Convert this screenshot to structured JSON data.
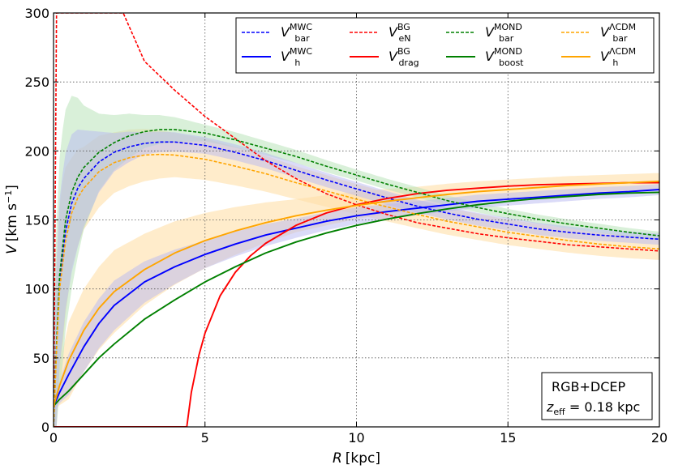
{
  "chart_data": {
    "type": "line",
    "xlabel": "R [kpc]",
    "ylabel": "V [km s⁻¹]",
    "xlim": [
      0,
      20
    ],
    "ylim": [
      0,
      300
    ],
    "x_ticks": [
      0,
      5,
      10,
      15,
      20
    ],
    "y_ticks": [
      0,
      50,
      100,
      150,
      200,
      250,
      300
    ],
    "grid": true,
    "legend_position": "top-right",
    "annotation": {
      "line1": "RGB+DCEP",
      "line2": "z_eff = 0.18 kpc",
      "z_symbol": "z",
      "z_sub": "eff",
      "z_value": " = 0.18 kpc"
    },
    "series": [
      {
        "id": "mwc_bar",
        "name": "V_bar^MWC",
        "sym": "V",
        "sup": "MWC",
        "sub": "bar",
        "color": "#0000ff",
        "dashed": true,
        "fill": "#8f8ff0",
        "points": [
          [
            0,
            0
          ],
          [
            0.1,
            60
          ],
          [
            0.2,
            105
          ],
          [
            0.4,
            142
          ],
          [
            0.6,
            162
          ],
          [
            0.8,
            173
          ],
          [
            1,
            180
          ],
          [
            1.5,
            192
          ],
          [
            2,
            199
          ],
          [
            2.5,
            203
          ],
          [
            3,
            205.5
          ],
          [
            3.5,
            206.5
          ],
          [
            4,
            206.5
          ],
          [
            5,
            204
          ],
          [
            6,
            199
          ],
          [
            7,
            193
          ],
          [
            8,
            186
          ],
          [
            9,
            179
          ],
          [
            10,
            172.5
          ],
          [
            11,
            166
          ],
          [
            12,
            160
          ],
          [
            13,
            155
          ],
          [
            14,
            150.5
          ],
          [
            15,
            147
          ],
          [
            16,
            143.5
          ],
          [
            17,
            141
          ],
          [
            18,
            139
          ],
          [
            19,
            137.5
          ],
          [
            20,
            136
          ]
        ]
      },
      {
        "id": "mwc_h",
        "name": "V_h^MWC",
        "sym": "V",
        "sup": "MWC",
        "sub": "h",
        "color": "#0000ff",
        "dashed": false,
        "fill": "#8f8ff0",
        "points": [
          [
            0,
            15
          ],
          [
            0.2,
            25
          ],
          [
            0.5,
            38
          ],
          [
            1,
            58
          ],
          [
            1.5,
            75
          ],
          [
            2,
            88
          ],
          [
            3,
            105
          ],
          [
            4,
            116
          ],
          [
            5,
            125
          ],
          [
            6,
            132.5
          ],
          [
            7,
            139
          ],
          [
            8,
            144
          ],
          [
            9,
            149
          ],
          [
            10,
            153
          ],
          [
            11,
            156
          ],
          [
            12,
            158.5
          ],
          [
            13,
            161
          ],
          [
            14,
            163.5
          ],
          [
            15,
            165
          ],
          [
            16,
            166.5
          ],
          [
            17,
            168
          ],
          [
            18,
            169.5
          ],
          [
            19,
            170.5
          ],
          [
            20,
            172
          ]
        ]
      },
      {
        "id": "bg_en",
        "name": "V_eN^BG",
        "sym": "V",
        "sup": "BG",
        "sub": "eN",
        "color": "#ff0000",
        "dashed": true,
        "points": [
          [
            0,
            0
          ],
          [
            0.05,
            150
          ],
          [
            0.1,
            300
          ],
          [
            2.3,
            300
          ],
          [
            3,
            265
          ],
          [
            4,
            244
          ],
          [
            5,
            225
          ],
          [
            6,
            209
          ],
          [
            7,
            193
          ],
          [
            8,
            180
          ],
          [
            9,
            169
          ],
          [
            10,
            161
          ],
          [
            11,
            154
          ],
          [
            12,
            148
          ],
          [
            13,
            144
          ],
          [
            14,
            140
          ],
          [
            15,
            137
          ],
          [
            16,
            134.5
          ],
          [
            17,
            132
          ],
          [
            18,
            130.5
          ],
          [
            19,
            129
          ],
          [
            20,
            127.5
          ]
        ]
      },
      {
        "id": "bg_drag",
        "name": "V_drag^BG",
        "sym": "V",
        "sup": "BG",
        "sub": "drag",
        "color": "#ff0000",
        "dashed": false,
        "points": [
          [
            0,
            0
          ],
          [
            4.4,
            0
          ],
          [
            4.55,
            25
          ],
          [
            4.8,
            52
          ],
          [
            5,
            68
          ],
          [
            5.5,
            95
          ],
          [
            6,
            112
          ],
          [
            6.5,
            124
          ],
          [
            7,
            133
          ],
          [
            8,
            146
          ],
          [
            9,
            155
          ],
          [
            10,
            161
          ],
          [
            11,
            165.5
          ],
          [
            12,
            169
          ],
          [
            13,
            171.5
          ],
          [
            14,
            173
          ],
          [
            15,
            174.5
          ],
          [
            16,
            175.5
          ],
          [
            17,
            176
          ],
          [
            18,
            176.5
          ],
          [
            19,
            177
          ],
          [
            20,
            177
          ]
        ]
      },
      {
        "id": "mond_bar",
        "name": "V_bar^MOND",
        "sym": "V",
        "sup": "MOND",
        "sub": "bar",
        "color": "#008000",
        "dashed": true,
        "fill": "#a6dca6",
        "points": [
          [
            0,
            0
          ],
          [
            0.1,
            60
          ],
          [
            0.2,
            110
          ],
          [
            0.4,
            150
          ],
          [
            0.6,
            170
          ],
          [
            0.8,
            181
          ],
          [
            1,
            188
          ],
          [
            1.5,
            199
          ],
          [
            2,
            206
          ],
          [
            2.5,
            211
          ],
          [
            3,
            214
          ],
          [
            3.5,
            215.5
          ],
          [
            4,
            215.5
          ],
          [
            5,
            213
          ],
          [
            6,
            208
          ],
          [
            7,
            202
          ],
          [
            8,
            196
          ],
          [
            9,
            189
          ],
          [
            10,
            182.5
          ],
          [
            11,
            176
          ],
          [
            12,
            170
          ],
          [
            13,
            164
          ],
          [
            14,
            159
          ],
          [
            15,
            154.5
          ],
          [
            16,
            150.5
          ],
          [
            17,
            147
          ],
          [
            18,
            144
          ],
          [
            19,
            141
          ],
          [
            20,
            138.5
          ]
        ]
      },
      {
        "id": "mond_boost",
        "name": "V_boost^MOND",
        "sym": "V",
        "sup": "MOND",
        "sub": "boost",
        "color": "#008000",
        "dashed": false,
        "fill": "#a6dca6",
        "points": [
          [
            0,
            15
          ],
          [
            0.2,
            20
          ],
          [
            0.5,
            26
          ],
          [
            1,
            38
          ],
          [
            1.5,
            50
          ],
          [
            2,
            60
          ],
          [
            3,
            78
          ],
          [
            4,
            92
          ],
          [
            5,
            105
          ],
          [
            6,
            116
          ],
          [
            7,
            126
          ],
          [
            8,
            134
          ],
          [
            9,
            140.5
          ],
          [
            10,
            146
          ],
          [
            11,
            150.5
          ],
          [
            12,
            154.5
          ],
          [
            13,
            158
          ],
          [
            14,
            161
          ],
          [
            15,
            163.5
          ],
          [
            16,
            165.5
          ],
          [
            17,
            167
          ],
          [
            18,
            168.5
          ],
          [
            19,
            169.5
          ],
          [
            20,
            170
          ]
        ]
      },
      {
        "id": "lcdm_bar",
        "name": "V_bar^ΛCDM",
        "sym": "V",
        "sup": "ΛCDM",
        "sub": "bar",
        "color": "#ffa500",
        "dashed": true,
        "fill": "#ffe0a8",
        "points": [
          [
            0,
            0
          ],
          [
            0.1,
            55
          ],
          [
            0.2,
            100
          ],
          [
            0.4,
            135
          ],
          [
            0.6,
            155
          ],
          [
            0.8,
            166
          ],
          [
            1,
            173
          ],
          [
            1.5,
            185
          ],
          [
            2,
            191.5
          ],
          [
            2.5,
            195
          ],
          [
            3,
            197
          ],
          [
            3.5,
            197.5
          ],
          [
            4,
            197
          ],
          [
            5,
            194
          ],
          [
            6,
            189
          ],
          [
            7,
            183.5
          ],
          [
            8,
            177
          ],
          [
            9,
            171
          ],
          [
            10,
            165
          ],
          [
            11,
            159.5
          ],
          [
            12,
            154
          ],
          [
            13,
            149
          ],
          [
            14,
            145
          ],
          [
            15,
            141
          ],
          [
            16,
            138
          ],
          [
            17,
            135
          ],
          [
            18,
            132.5
          ],
          [
            19,
            130.5
          ],
          [
            20,
            129
          ]
        ]
      },
      {
        "id": "lcdm_h",
        "name": "V_h^ΛCDM",
        "sym": "V",
        "sup": "ΛCDM",
        "sub": "h",
        "color": "#ffa500",
        "dashed": false,
        "fill": "#ffe0a8",
        "points": [
          [
            0,
            15
          ],
          [
            0.2,
            30
          ],
          [
            0.5,
            48
          ],
          [
            1,
            70
          ],
          [
            1.5,
            86
          ],
          [
            2,
            98
          ],
          [
            3,
            114
          ],
          [
            4,
            126
          ],
          [
            5,
            135
          ],
          [
            6,
            142
          ],
          [
            7,
            148
          ],
          [
            8,
            153
          ],
          [
            9,
            157
          ],
          [
            10,
            160.5
          ],
          [
            11,
            163.5
          ],
          [
            12,
            166
          ],
          [
            13,
            168.5
          ],
          [
            14,
            170.5
          ],
          [
            15,
            172
          ],
          [
            16,
            173.5
          ],
          [
            17,
            175
          ],
          [
            18,
            176
          ],
          [
            19,
            177
          ],
          [
            20,
            178
          ]
        ]
      }
    ],
    "bands": [
      {
        "id": "band_lcdm_bar",
        "color": "#ffe0a8",
        "opacity": 0.6,
        "delta": [
          [
            0.3,
            60
          ],
          [
            0.6,
            40
          ],
          [
            1,
            30
          ],
          [
            2,
            22
          ],
          [
            4,
            16
          ],
          [
            8,
            12
          ],
          [
            12,
            10
          ],
          [
            20,
            8
          ]
        ]
      },
      {
        "id": "band_lcdm_h",
        "color": "#ffe0a8",
        "opacity": 0.6,
        "delta": [
          [
            0,
            5
          ],
          [
            0.5,
            28
          ],
          [
            1,
            30
          ],
          [
            2,
            30
          ],
          [
            3,
            26
          ],
          [
            5,
            20
          ],
          [
            8,
            12
          ],
          [
            12,
            8
          ],
          [
            20,
            6
          ]
        ]
      },
      {
        "id": "band_mond_bar",
        "color": "#b9e3b9",
        "opacity": 0.55,
        "delta": [
          [
            0.3,
            85
          ],
          [
            0.6,
            70
          ],
          [
            1,
            45
          ],
          [
            1.5,
            28
          ],
          [
            2,
            20
          ],
          [
            3,
            12
          ],
          [
            5,
            6
          ],
          [
            10,
            4
          ],
          [
            20,
            3
          ]
        ]
      },
      {
        "id": "band_mwc_bar",
        "color": "#b7b7f2",
        "opacity": 0.5,
        "delta": [
          [
            0.3,
            60
          ],
          [
            0.6,
            50
          ],
          [
            1,
            35
          ],
          [
            1.5,
            22
          ],
          [
            2,
            14
          ],
          [
            3,
            8
          ],
          [
            5,
            6
          ],
          [
            10,
            5
          ],
          [
            20,
            4
          ]
        ]
      },
      {
        "id": "band_mwc_h",
        "color": "#b7b7f2",
        "opacity": 0.5,
        "delta": [
          [
            0,
            3
          ],
          [
            0.5,
            15
          ],
          [
            1,
            18
          ],
          [
            2,
            18
          ],
          [
            3,
            15
          ],
          [
            5,
            10
          ],
          [
            8,
            7
          ],
          [
            12,
            5
          ],
          [
            20,
            4
          ]
        ]
      }
    ]
  }
}
